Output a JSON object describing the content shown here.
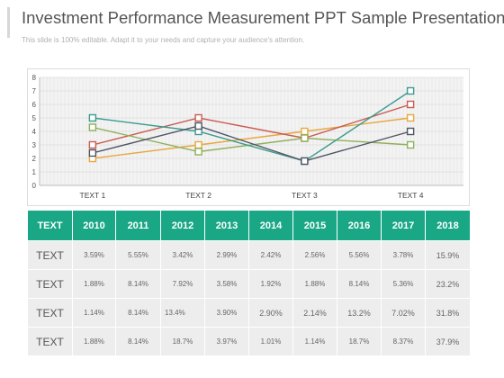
{
  "header": {
    "title": "Investment Performance Measurement PPT Sample Presentations",
    "subtitle": "This slide is 100% editable. Adapt it to your needs and capture your audience's attention."
  },
  "chart_data": {
    "type": "line",
    "categories": [
      "TEXT 1",
      "TEXT 2",
      "TEXT 3",
      "TEXT 4"
    ],
    "ylim": [
      0,
      8
    ],
    "yticks": [
      0,
      1,
      2,
      3,
      4,
      5,
      6,
      7,
      8
    ],
    "grid": true,
    "series": [
      {
        "color": "#e8a73d",
        "values": [
          2.0,
          3.0,
          4.0,
          5.0
        ]
      },
      {
        "color": "#c95c52",
        "values": [
          3.0,
          5.0,
          3.5,
          6.0
        ]
      },
      {
        "color": "#8fb05a",
        "values": [
          4.3,
          2.5,
          3.5,
          3.0
        ]
      },
      {
        "color": "#3c9b8f",
        "values": [
          5.0,
          4.0,
          1.8,
          7.0
        ]
      },
      {
        "color": "#4f5563",
        "values": [
          2.4,
          4.4,
          1.8,
          4.0
        ]
      }
    ]
  },
  "table": {
    "header": [
      "TEXT",
      "2010",
      "2011",
      "2012",
      "2013",
      "2014",
      "2015",
      "2016",
      "2017",
      "2018"
    ],
    "rows": [
      {
        "label": "TEXT",
        "cells": [
          "3.59%",
          "5.55%",
          "3.42%",
          "2.99%",
          "2.42%",
          "2.56%",
          "5.56%",
          "3.78%",
          "15.9%"
        ]
      },
      {
        "label": "TEXT",
        "cells": [
          "1.88%",
          "8.14%",
          "7.92%",
          "3.58%",
          "1.92%",
          "1.88%",
          "8.14%",
          "5.36%",
          "23.2%"
        ]
      },
      {
        "label": "TEXT",
        "cells": [
          "1.14%",
          "8.14%",
          "13.4%",
          "3.90%",
          "2.90%",
          "2.14%",
          "13.2%",
          "7.02%",
          "31.8%"
        ]
      },
      {
        "label": "TEXT",
        "cells": [
          "1.88%",
          "8.14%",
          "18.7%",
          "3.97%",
          "1.01%",
          "1.14%",
          "18.7%",
          "8.37%",
          "37.9%"
        ]
      }
    ]
  }
}
